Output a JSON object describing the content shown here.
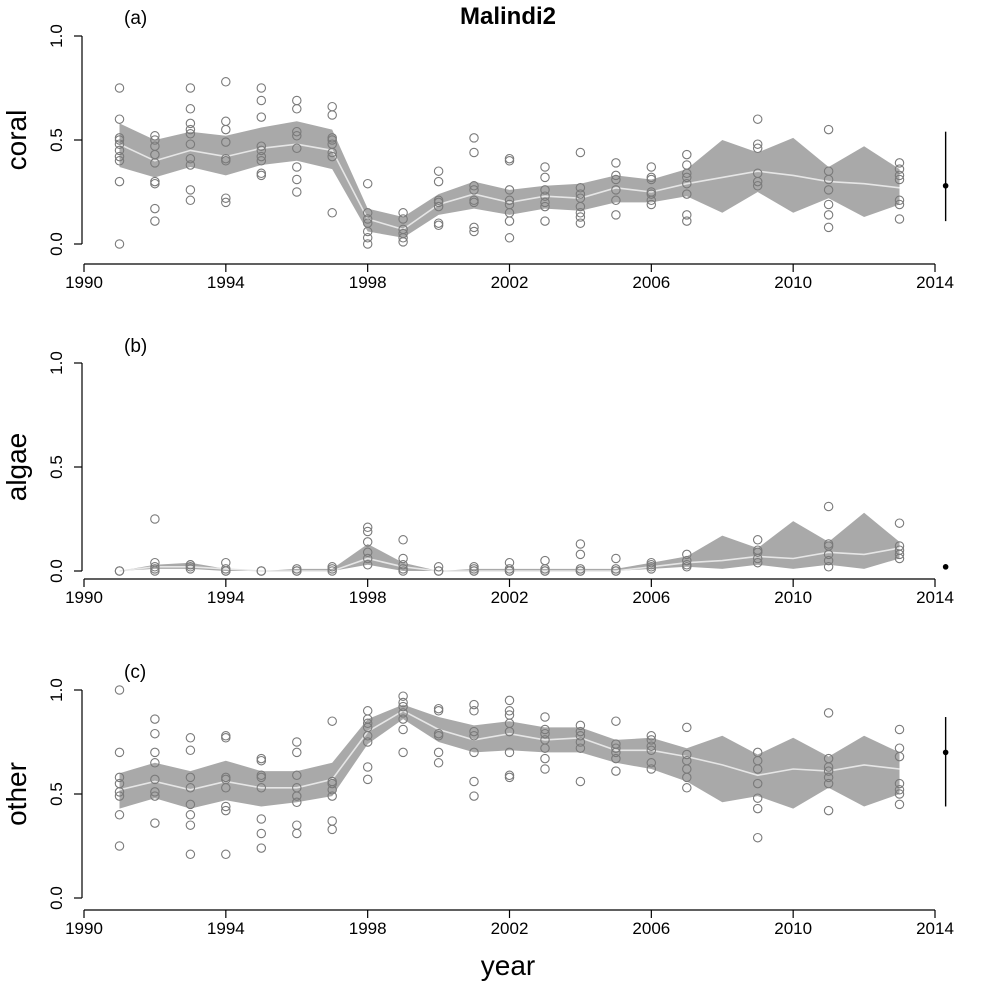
{
  "chart_data": {
    "type": "scatter",
    "title": "Malindi2",
    "xlabel": "year",
    "xlim": [
      1990,
      2014
    ],
    "x_ticks": [
      "1990",
      "1994",
      "1998",
      "2002",
      "2006",
      "2010",
      "2014"
    ],
    "y_ticks": [
      "0.0",
      "0.5",
      "1.0"
    ],
    "ylim": [
      0,
      1
    ],
    "colors": {
      "band": "#a9a9a9",
      "mean_line": "#e6e6e6",
      "points": "#7a7a7a",
      "axis": "#000000"
    },
    "panels": [
      {
        "label": "(a)",
        "ylabel": "coral",
        "band": {
          "x": [
            1991,
            1992,
            1993,
            1994,
            1995,
            1996,
            1997,
            1998,
            1999,
            2000,
            2001,
            2002,
            2003,
            2004,
            2005,
            2006,
            2007,
            2008,
            2009,
            2010,
            2011,
            2012,
            2013
          ],
          "lower": [
            0.37,
            0.32,
            0.37,
            0.33,
            0.38,
            0.4,
            0.36,
            0.06,
            0.03,
            0.14,
            0.17,
            0.14,
            0.17,
            0.16,
            0.2,
            0.2,
            0.23,
            0.15,
            0.25,
            0.15,
            0.22,
            0.13,
            0.19
          ],
          "upper": [
            0.58,
            0.5,
            0.54,
            0.52,
            0.56,
            0.59,
            0.55,
            0.17,
            0.13,
            0.24,
            0.3,
            0.26,
            0.28,
            0.29,
            0.33,
            0.31,
            0.36,
            0.5,
            0.44,
            0.51,
            0.37,
            0.47,
            0.36
          ],
          "mean": [
            0.48,
            0.4,
            0.45,
            0.42,
            0.46,
            0.48,
            0.45,
            0.12,
            0.07,
            0.19,
            0.24,
            0.2,
            0.23,
            0.22,
            0.27,
            0.25,
            0.29,
            0.32,
            0.35,
            0.33,
            0.3,
            0.29,
            0.27
          ]
        },
        "points": [
          {
            "x": 1991,
            "y": [
              0.0,
              0.3,
              0.4,
              0.42,
              0.45,
              0.48,
              0.5,
              0.51,
              0.6,
              0.75
            ]
          },
          {
            "x": 1992,
            "y": [
              0.11,
              0.17,
              0.29,
              0.3,
              0.39,
              0.43,
              0.47,
              0.5,
              0.52
            ]
          },
          {
            "x": 1993,
            "y": [
              0.21,
              0.26,
              0.38,
              0.41,
              0.48,
              0.53,
              0.55,
              0.58,
              0.65,
              0.75
            ]
          },
          {
            "x": 1994,
            "y": [
              0.2,
              0.22,
              0.4,
              0.41,
              0.49,
              0.55,
              0.59,
              0.78
            ]
          },
          {
            "x": 1995,
            "y": [
              0.33,
              0.34,
              0.4,
              0.42,
              0.45,
              0.47,
              0.61,
              0.69,
              0.75
            ]
          },
          {
            "x": 1996,
            "y": [
              0.25,
              0.31,
              0.37,
              0.46,
              0.52,
              0.54,
              0.65,
              0.69
            ]
          },
          {
            "x": 1997,
            "y": [
              0.15,
              0.42,
              0.44,
              0.48,
              0.5,
              0.51,
              0.62,
              0.66
            ]
          },
          {
            "x": 1998,
            "y": [
              0.0,
              0.03,
              0.06,
              0.1,
              0.12,
              0.15,
              0.29
            ]
          },
          {
            "x": 1999,
            "y": [
              0.01,
              0.03,
              0.05,
              0.07,
              0.12,
              0.15
            ]
          },
          {
            "x": 2000,
            "y": [
              0.09,
              0.1,
              0.18,
              0.2,
              0.21,
              0.3,
              0.35
            ]
          },
          {
            "x": 2001,
            "y": [
              0.06,
              0.08,
              0.2,
              0.21,
              0.26,
              0.28,
              0.44,
              0.51
            ]
          },
          {
            "x": 2002,
            "y": [
              0.03,
              0.11,
              0.15,
              0.19,
              0.21,
              0.26,
              0.4,
              0.41
            ]
          },
          {
            "x": 2003,
            "y": [
              0.11,
              0.18,
              0.2,
              0.23,
              0.26,
              0.32,
              0.37
            ]
          },
          {
            "x": 2004,
            "y": [
              0.1,
              0.13,
              0.15,
              0.18,
              0.22,
              0.24,
              0.27,
              0.44
            ]
          },
          {
            "x": 2005,
            "y": [
              0.14,
              0.21,
              0.26,
              0.31,
              0.33,
              0.39
            ]
          },
          {
            "x": 2006,
            "y": [
              0.19,
              0.21,
              0.24,
              0.25,
              0.31,
              0.32,
              0.37
            ]
          },
          {
            "x": 2007,
            "y": [
              0.11,
              0.14,
              0.24,
              0.29,
              0.32,
              0.34,
              0.38,
              0.43
            ]
          },
          {
            "x": 2009,
            "y": [
              0.28,
              0.3,
              0.34,
              0.46,
              0.48,
              0.6
            ]
          },
          {
            "x": 2011,
            "y": [
              0.08,
              0.14,
              0.19,
              0.26,
              0.31,
              0.35,
              0.55
            ]
          },
          {
            "x": 2013,
            "y": [
              0.12,
              0.19,
              0.21,
              0.31,
              0.33,
              0.36,
              0.39
            ]
          }
        ],
        "side_marker": {
          "x": 2014.3,
          "y": 0.28,
          "lower": 0.11,
          "upper": 0.54
        }
      },
      {
        "label": "(b)",
        "ylabel": "algae",
        "band": {
          "x": [
            1991,
            1992,
            1993,
            1994,
            1995,
            1996,
            1997,
            1998,
            1999,
            2000,
            2001,
            2002,
            2003,
            2004,
            2005,
            2006,
            2007,
            2008,
            2009,
            2010,
            2011,
            2012,
            2013
          ],
          "lower": [
            0.0,
            0.01,
            0.01,
            0.0,
            0.0,
            0.0,
            0.0,
            0.03,
            0.0,
            0.0,
            0.0,
            0.0,
            0.0,
            0.0,
            0.0,
            0.01,
            0.02,
            0.01,
            0.03,
            0.01,
            0.03,
            0.01,
            0.06
          ],
          "upper": [
            0.0,
            0.03,
            0.04,
            0.01,
            0.0,
            0.01,
            0.01,
            0.13,
            0.04,
            0.0,
            0.01,
            0.01,
            0.01,
            0.01,
            0.01,
            0.04,
            0.07,
            0.17,
            0.11,
            0.24,
            0.14,
            0.28,
            0.14
          ]
        },
        "band_mean": [
          0.0,
          0.02,
          0.02,
          0.01,
          0.0,
          0.0,
          0.0,
          0.06,
          0.02,
          0.0,
          0.0,
          0.0,
          0.0,
          0.0,
          0.0,
          0.02,
          0.04,
          0.05,
          0.07,
          0.06,
          0.09,
          0.08,
          0.11
        ],
        "points": [
          {
            "x": 1991,
            "y": [
              0.0,
              0.0
            ]
          },
          {
            "x": 1992,
            "y": [
              0.0,
              0.01,
              0.02,
              0.04,
              0.25
            ]
          },
          {
            "x": 1993,
            "y": [
              0.01,
              0.02,
              0.03,
              0.03
            ]
          },
          {
            "x": 1994,
            "y": [
              0.0,
              0.0,
              0.01,
              0.04
            ]
          },
          {
            "x": 1995,
            "y": [
              0.0,
              0.0
            ]
          },
          {
            "x": 1996,
            "y": [
              0.0,
              0.0,
              0.01
            ]
          },
          {
            "x": 1997,
            "y": [
              0.0,
              0.01,
              0.02
            ]
          },
          {
            "x": 1998,
            "y": [
              0.03,
              0.06,
              0.09,
              0.14,
              0.19,
              0.21
            ]
          },
          {
            "x": 1999,
            "y": [
              0.0,
              0.01,
              0.03,
              0.06,
              0.15
            ]
          },
          {
            "x": 2000,
            "y": [
              0.0,
              0.0,
              0.02
            ]
          },
          {
            "x": 2001,
            "y": [
              0.0,
              0.0,
              0.01,
              0.02
            ]
          },
          {
            "x": 2002,
            "y": [
              0.0,
              0.0,
              0.01,
              0.04
            ]
          },
          {
            "x": 2003,
            "y": [
              0.0,
              0.0,
              0.01,
              0.05
            ]
          },
          {
            "x": 2004,
            "y": [
              0.0,
              0.0,
              0.01,
              0.08,
              0.13
            ]
          },
          {
            "x": 2005,
            "y": [
              0.0,
              0.0,
              0.01,
              0.06
            ]
          },
          {
            "x": 2006,
            "y": [
              0.01,
              0.02,
              0.03,
              0.04
            ]
          },
          {
            "x": 2007,
            "y": [
              0.02,
              0.03,
              0.05,
              0.08
            ]
          },
          {
            "x": 2009,
            "y": [
              0.04,
              0.06,
              0.09,
              0.1,
              0.15
            ]
          },
          {
            "x": 2011,
            "y": [
              0.02,
              0.05,
              0.08,
              0.12,
              0.13,
              0.31
            ]
          },
          {
            "x": 2013,
            "y": [
              0.06,
              0.08,
              0.1,
              0.12,
              0.23
            ]
          }
        ],
        "side_marker": {
          "x": 2014.3,
          "y": 0.02
        }
      },
      {
        "label": "(c)",
        "ylabel": "other",
        "band": {
          "x": [
            1991,
            1992,
            1993,
            1994,
            1995,
            1996,
            1997,
            1998,
            1999,
            2000,
            2001,
            2002,
            2003,
            2004,
            2005,
            2006,
            2007,
            2008,
            2009,
            2010,
            2011,
            2012,
            2013
          ],
          "lower": [
            0.43,
            0.48,
            0.43,
            0.47,
            0.44,
            0.46,
            0.49,
            0.74,
            0.86,
            0.75,
            0.7,
            0.71,
            0.7,
            0.7,
            0.65,
            0.62,
            0.56,
            0.46,
            0.49,
            0.43,
            0.53,
            0.44,
            0.5
          ],
          "upper": [
            0.6,
            0.65,
            0.61,
            0.66,
            0.61,
            0.61,
            0.65,
            0.86,
            0.93,
            0.87,
            0.83,
            0.85,
            0.82,
            0.82,
            0.76,
            0.77,
            0.72,
            0.78,
            0.69,
            0.77,
            0.68,
            0.78,
            0.7
          ]
        },
        "band_mean": [
          0.52,
          0.56,
          0.52,
          0.56,
          0.53,
          0.53,
          0.57,
          0.8,
          0.9,
          0.81,
          0.76,
          0.79,
          0.76,
          0.77,
          0.71,
          0.71,
          0.68,
          0.64,
          0.59,
          0.62,
          0.61,
          0.64,
          0.62
        ],
        "points": [
          {
            "x": 1991,
            "y": [
              0.25,
              0.4,
              0.49,
              0.51,
              0.55,
              0.58,
              0.7,
              1.0
            ]
          },
          {
            "x": 1992,
            "y": [
              0.36,
              0.49,
              0.51,
              0.57,
              0.65,
              0.7,
              0.79,
              0.86
            ]
          },
          {
            "x": 1993,
            "y": [
              0.21,
              0.35,
              0.4,
              0.45,
              0.53,
              0.58,
              0.71,
              0.77
            ]
          },
          {
            "x": 1994,
            "y": [
              0.21,
              0.42,
              0.44,
              0.53,
              0.57,
              0.58,
              0.77,
              0.78
            ]
          },
          {
            "x": 1995,
            "y": [
              0.24,
              0.31,
              0.38,
              0.53,
              0.58,
              0.59,
              0.66,
              0.67
            ]
          },
          {
            "x": 1996,
            "y": [
              0.31,
              0.35,
              0.46,
              0.49,
              0.53,
              0.59,
              0.7,
              0.75
            ]
          },
          {
            "x": 1997,
            "y": [
              0.33,
              0.37,
              0.49,
              0.52,
              0.55,
              0.56,
              0.85
            ]
          },
          {
            "x": 1998,
            "y": [
              0.57,
              0.63,
              0.75,
              0.78,
              0.82,
              0.84,
              0.86,
              0.9
            ]
          },
          {
            "x": 1999,
            "y": [
              0.7,
              0.81,
              0.86,
              0.89,
              0.92,
              0.94,
              0.97
            ]
          },
          {
            "x": 2000,
            "y": [
              0.65,
              0.7,
              0.78,
              0.79,
              0.9,
              0.91
            ]
          },
          {
            "x": 2001,
            "y": [
              0.49,
              0.56,
              0.7,
              0.78,
              0.8,
              0.9,
              0.93
            ]
          },
          {
            "x": 2002,
            "y": [
              0.58,
              0.59,
              0.7,
              0.8,
              0.84,
              0.88,
              0.9,
              0.95
            ]
          },
          {
            "x": 2003,
            "y": [
              0.62,
              0.67,
              0.72,
              0.76,
              0.79,
              0.81,
              0.87
            ]
          },
          {
            "x": 2004,
            "y": [
              0.56,
              0.72,
              0.75,
              0.78,
              0.8,
              0.83
            ]
          },
          {
            "x": 2005,
            "y": [
              0.61,
              0.67,
              0.7,
              0.72,
              0.74,
              0.85
            ]
          },
          {
            "x": 2006,
            "y": [
              0.62,
              0.65,
              0.71,
              0.73,
              0.76,
              0.78
            ]
          },
          {
            "x": 2007,
            "y": [
              0.53,
              0.58,
              0.62,
              0.66,
              0.69,
              0.82
            ]
          },
          {
            "x": 2009,
            "y": [
              0.29,
              0.43,
              0.48,
              0.55,
              0.62,
              0.66,
              0.7
            ]
          },
          {
            "x": 2011,
            "y": [
              0.42,
              0.55,
              0.58,
              0.61,
              0.63,
              0.67,
              0.89
            ]
          },
          {
            "x": 2013,
            "y": [
              0.45,
              0.5,
              0.52,
              0.55,
              0.68,
              0.72,
              0.81
            ]
          }
        ],
        "side_marker": {
          "x": 2014.3,
          "y": 0.7,
          "lower": 0.44,
          "upper": 0.87
        }
      }
    ]
  }
}
